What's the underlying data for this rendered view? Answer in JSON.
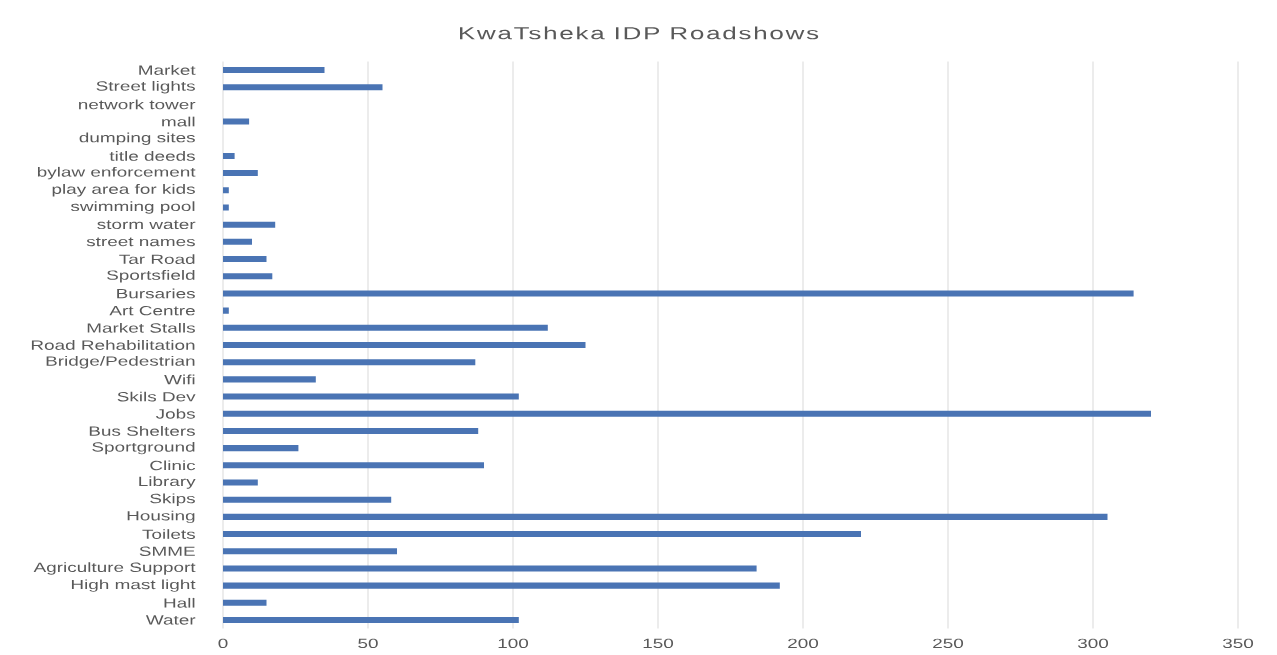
{
  "chart_data": {
    "type": "bar",
    "orientation": "horizontal",
    "title": "KwaTsheka IDP Roadshows",
    "categories": [
      "Market",
      "Street lights",
      "network tower",
      "mall",
      "dumping sites",
      "title deeds",
      "bylaw enforcement",
      "play area for kids",
      "swimming pool",
      "storm water",
      "street names",
      "Tar Road",
      "Sportsfield",
      "Bursaries",
      "Art Centre",
      "Market Stalls",
      "Road Rehabilitation",
      "Bridge/Pedestrian",
      "Wifi",
      "Skils Dev",
      "Jobs",
      "Bus Shelters",
      "Sportground",
      "Clinic",
      "Library",
      "Skips",
      "Housing",
      "Toilets",
      "SMME",
      "Agriculture Support",
      "High mast light",
      "Hall",
      "Water"
    ],
    "values": [
      35,
      55,
      0,
      9,
      0,
      4,
      12,
      2,
      2,
      18,
      10,
      15,
      17,
      314,
      2,
      112,
      125,
      87,
      32,
      102,
      320,
      88,
      26,
      90,
      12,
      58,
      305,
      220,
      60,
      184,
      192,
      15,
      102
    ],
    "color": "#4a74b4",
    "xlim": [
      0,
      350
    ],
    "xticks": [
      0,
      50,
      100,
      150,
      200,
      250,
      300,
      350
    ],
    "grid": "x"
  }
}
